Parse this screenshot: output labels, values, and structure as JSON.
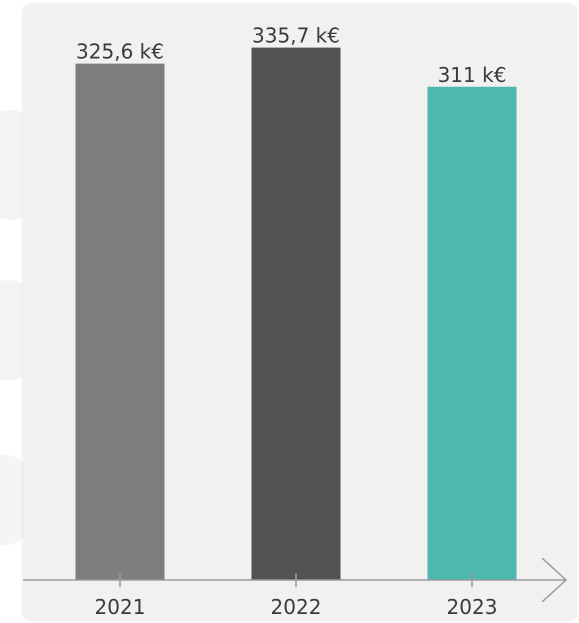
{
  "colors": {
    "panel_background": "#f1f1f1",
    "axis": "#9a9a9a",
    "label_text": "#3a3a3a"
  },
  "chart_data": {
    "type": "bar",
    "categories": [
      "2021",
      "2022",
      "2023"
    ],
    "values": [
      325.6,
      335.7,
      311
    ],
    "value_labels": [
      "325,6 k€",
      "335,7 k€",
      "311 k€"
    ],
    "bar_colors": [
      "#7e7e7e",
      "#525252",
      "#4db8ad"
    ],
    "unit": "k€",
    "title": "",
    "xlabel": "",
    "ylabel": "",
    "grid": false,
    "legend": "none",
    "ylim": [
      0,
      355
    ]
  }
}
